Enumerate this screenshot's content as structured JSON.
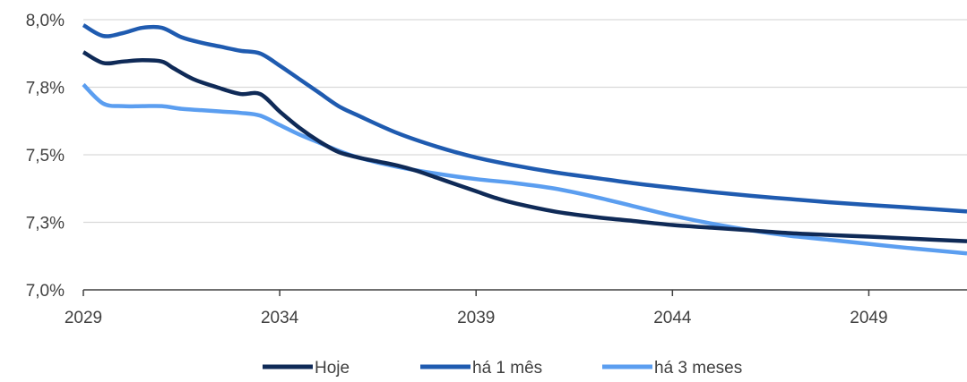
{
  "chart_data": {
    "type": "line",
    "title": "",
    "xlabel": "",
    "ylabel": "",
    "xlim": [
      2029,
      2051.5
    ],
    "ylim": [
      7.0,
      8.0
    ],
    "x_ticks": [
      2029,
      2034,
      2039,
      2044,
      2049
    ],
    "x_tick_labels": [
      "2029",
      "2034",
      "2039",
      "2044",
      "2049"
    ],
    "y_ticks": [
      7.0,
      7.25,
      7.5,
      7.75,
      8.0
    ],
    "y_tick_labels": [
      "7,0%",
      "7,3%",
      "7,5%",
      "7,8%",
      "8,0%"
    ],
    "grid": "horizontal",
    "legend_position": "bottom",
    "series": [
      {
        "name": "Hoje",
        "color": "#0f2a57",
        "x": [
          2029,
          2029.5,
          2030,
          2030.5,
          2031,
          2031.3,
          2031.8,
          2032.4,
          2033,
          2033.5,
          2034,
          2034.5,
          2035,
          2035.5,
          2036,
          2036.5,
          2037,
          2037.5,
          2038,
          2038.5,
          2039,
          2039.5,
          2040,
          2041,
          2042,
          2043,
          2044,
          2045,
          2046,
          2047,
          2048,
          2049,
          2050,
          2051.5
        ],
        "values": [
          7.88,
          7.84,
          7.845,
          7.85,
          7.845,
          7.82,
          7.78,
          7.75,
          7.725,
          7.725,
          7.66,
          7.6,
          7.55,
          7.51,
          7.49,
          7.475,
          7.46,
          7.44,
          7.415,
          7.39,
          7.365,
          7.34,
          7.32,
          7.29,
          7.27,
          7.255,
          7.24,
          7.23,
          7.22,
          7.21,
          7.203,
          7.197,
          7.19,
          7.18
        ]
      },
      {
        "name": "há 1 mês",
        "color": "#1f5bb0",
        "x": [
          2029,
          2029.5,
          2030,
          2030.5,
          2031,
          2031.5,
          2032,
          2032.5,
          2033,
          2033.5,
          2034,
          2034.5,
          2035,
          2035.5,
          2036,
          2037,
          2038,
          2039,
          2040,
          2041,
          2042,
          2043,
          2044,
          2045,
          2046,
          2047,
          2048,
          2049,
          2050,
          2051.5
        ],
        "values": [
          7.98,
          7.94,
          7.95,
          7.97,
          7.97,
          7.935,
          7.915,
          7.9,
          7.885,
          7.875,
          7.83,
          7.78,
          7.73,
          7.68,
          7.645,
          7.58,
          7.53,
          7.49,
          7.46,
          7.435,
          7.415,
          7.395,
          7.378,
          7.362,
          7.348,
          7.336,
          7.324,
          7.314,
          7.305,
          7.29
        ]
      },
      {
        "name": "há 3 meses",
        "color": "#5b9ef0",
        "x": [
          2029,
          2029.5,
          2030,
          2030.5,
          2031,
          2031.5,
          2032,
          2032.5,
          2033,
          2033.5,
          2034,
          2034.5,
          2035,
          2035.5,
          2036,
          2037,
          2038,
          2039,
          2040,
          2041,
          2042,
          2043,
          2044,
          2045,
          2046,
          2047,
          2048,
          2049,
          2050,
          2051.5
        ],
        "values": [
          7.76,
          7.69,
          7.68,
          7.68,
          7.68,
          7.67,
          7.665,
          7.66,
          7.655,
          7.645,
          7.61,
          7.575,
          7.545,
          7.515,
          7.49,
          7.455,
          7.43,
          7.41,
          7.395,
          7.375,
          7.345,
          7.31,
          7.275,
          7.245,
          7.22,
          7.2,
          7.185,
          7.17,
          7.155,
          7.135
        ]
      }
    ]
  }
}
